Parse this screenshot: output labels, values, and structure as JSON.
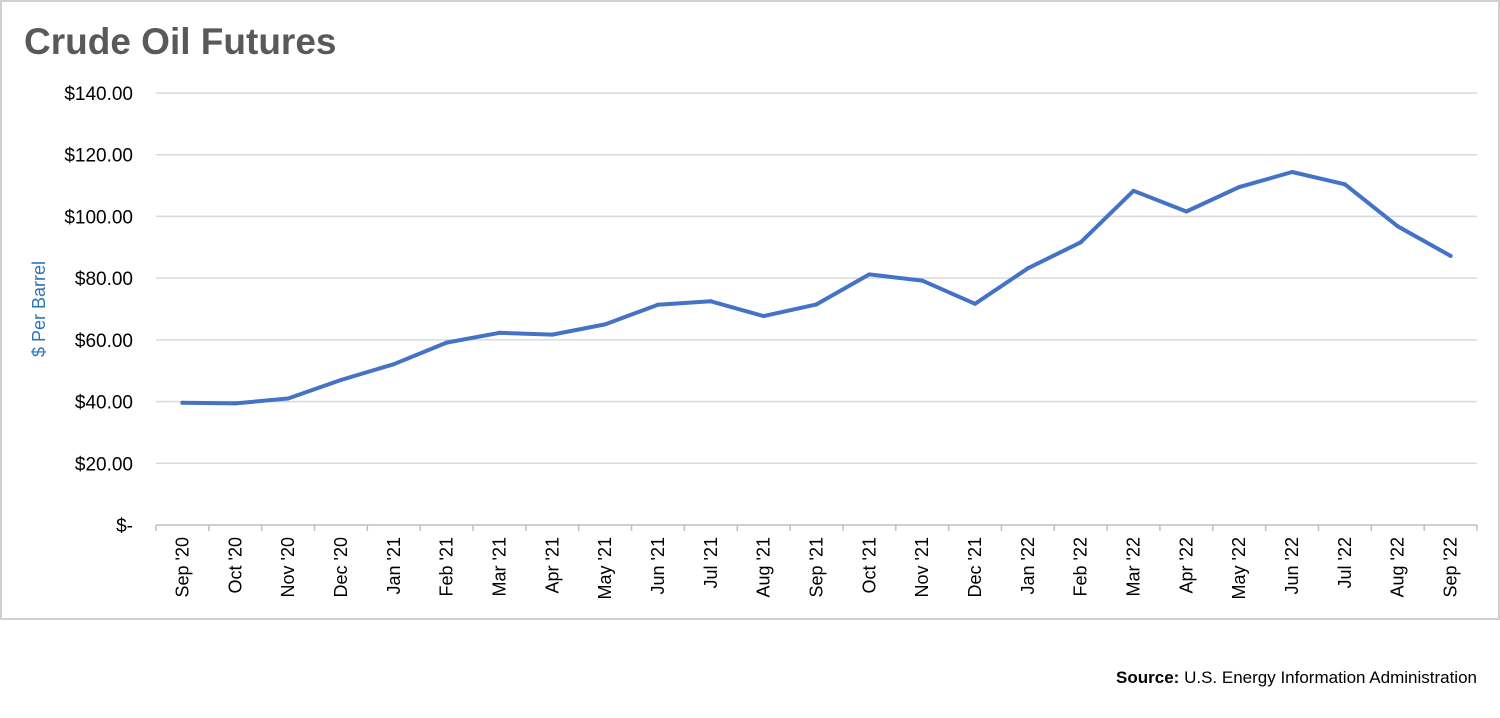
{
  "colors": {
    "line": "#4472c4",
    "ylabel": "#2e75b6",
    "grid": "#d9d9d9",
    "title": "#595959"
  },
  "source": {
    "label": "Source:",
    "text": "U.S. Energy Information Administration"
  },
  "chart_data": {
    "type": "line",
    "title": "Crude Oil Futures",
    "xlabel": "",
    "ylabel": "$ Per Barrel",
    "ylim": [
      0,
      140
    ],
    "yticks": [
      0,
      20,
      40,
      60,
      80,
      100,
      120,
      140
    ],
    "ytick_labels": [
      "$-",
      "$20.00",
      "$40.00",
      "$60.00",
      "$80.00",
      "$100.00",
      "$120.00",
      "$140.00"
    ],
    "grid": "horizontal",
    "legend": "none",
    "categories": [
      "Sep '20",
      "Oct '20",
      "Nov '20",
      "Dec '20",
      "Jan '21",
      "Feb '21",
      "Mar '21",
      "Apr '21",
      "May '21",
      "Jun '21",
      "Jul '21",
      "Aug '21",
      "Sep '21",
      "Oct '21",
      "Nov '21",
      "Dec '21",
      "Jan '22",
      "Feb '22",
      "Mar '22",
      "Apr '22",
      "May '22",
      "Jun '22",
      "Jul '22",
      "Aug '22",
      "Sep '22"
    ],
    "series": [
      {
        "values": [
          39.6,
          39.4,
          41.0,
          47.0,
          52.1,
          59.1,
          62.3,
          61.7,
          65.0,
          71.4,
          72.5,
          67.7,
          71.5,
          81.2,
          79.2,
          71.7,
          83.2,
          91.6,
          108.3,
          101.6,
          109.5,
          114.4,
          110.4,
          96.8,
          87.2
        ]
      }
    ]
  }
}
